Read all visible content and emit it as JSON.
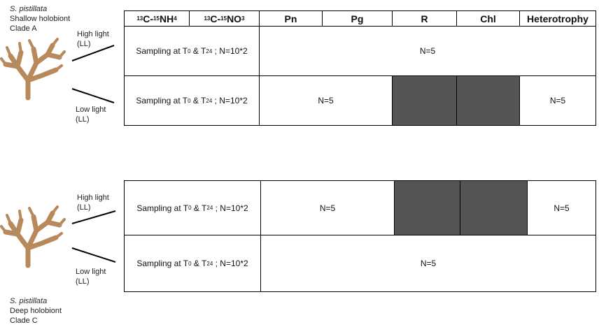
{
  "top": {
    "species": "S. pistillata",
    "holobiont": "Shallow holobiont",
    "clade": "Clade A",
    "high_light": {
      "line1": "High light",
      "line2": "(LL)"
    },
    "low_light": {
      "line1": "Low light",
      "line2": "(LL)"
    },
    "header": {
      "ammonium": {
        "iso1": "13",
        "element": "C-",
        "iso2": "15",
        "base": "NH",
        "sub": "4"
      },
      "nitrate": {
        "iso1": "13",
        "element": "C-",
        "iso2": "15",
        "base": "NO",
        "sub": "3"
      },
      "pn": "Pn",
      "pg": "Pg",
      "r": "R",
      "chl": "Chl",
      "heterotrophy": "Heterotrophy"
    },
    "rows": [
      {
        "sampling": {
          "a": "Sampling at T",
          "b": "0",
          "c": " & T",
          "d": "24",
          "e": " ; N=10*2"
        },
        "cells": [
          "N=5"
        ]
      },
      {
        "sampling": {
          "a": "Sampling at T",
          "b": "0",
          "c": " & T",
          "d": "24",
          "e": " ; N=10*2"
        },
        "cells": [
          "N=5",
          "N=5"
        ]
      }
    ]
  },
  "bottom": {
    "species": "S. pistillata",
    "holobiont": "Deep holobiont",
    "clade": "Clade C",
    "high_light": {
      "line1": "High light",
      "line2": "(LL)"
    },
    "low_light": {
      "line1": "Low light",
      "line2": "(LL)"
    },
    "rows": [
      {
        "sampling": {
          "a": "Sampling at T",
          "b": "0",
          "c": " & T",
          "d": "24",
          "e": " ; N=10*2"
        },
        "cells": [
          "N=5",
          "N=5"
        ]
      },
      {
        "sampling": {
          "a": "Sampling at T",
          "b": "0",
          "c": " & T",
          "d": "24",
          "e": " ; N=10*2"
        },
        "cells": [
          "N=5"
        ]
      }
    ]
  }
}
